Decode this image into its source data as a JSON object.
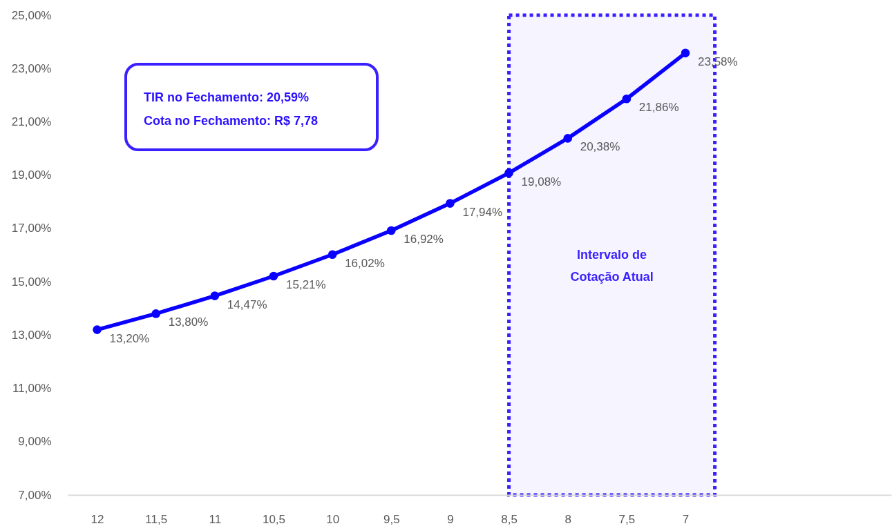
{
  "chart_data": {
    "type": "line",
    "categories": [
      "12",
      "11,5",
      "11",
      "10,5",
      "10",
      "9,5",
      "9",
      "8,5",
      "8",
      "7,5",
      "7",
      null,
      null,
      null
    ],
    "values": [
      13.2,
      13.8,
      14.47,
      15.21,
      16.02,
      16.92,
      17.94,
      19.08,
      20.38,
      21.86,
      23.58,
      null,
      null,
      null
    ],
    "value_labels": [
      "13,20%",
      "13,80%",
      "14,47%",
      "15,21%",
      "16,02%",
      "16,92%",
      "17,94%",
      "19,08%",
      "20,38%",
      "21,86%",
      "23,58%",
      null,
      null,
      null
    ],
    "color": "#0a00ff",
    "marker": "circle",
    "line_style": "solid",
    "grid": false,
    "ylim": [
      7,
      25
    ],
    "yticks": [
      {
        "value": 7,
        "label": "7,00%"
      },
      {
        "value": 9,
        "label": "9,00%"
      },
      {
        "value": 11,
        "label": "11,00%"
      },
      {
        "value": 13,
        "label": "13,00%"
      },
      {
        "value": 15,
        "label": "15,00%"
      },
      {
        "value": 17,
        "label": "17,00%"
      },
      {
        "value": 19,
        "label": "19,00%"
      },
      {
        "value": 21,
        "label": "21,00%"
      },
      {
        "value": 23,
        "label": "23,00%"
      },
      {
        "value": 25,
        "label": "25,00%"
      }
    ],
    "bands": [
      {
        "axis": "x",
        "from": "8,5",
        "to": "7",
        "label": "Intervalo de\nCotação Atual",
        "color": "#3a1fff"
      }
    ],
    "annotations": [
      "TIR no Fechamento: 20,59%",
      "Cota no Fechamento: R$ 7,78"
    ]
  }
}
